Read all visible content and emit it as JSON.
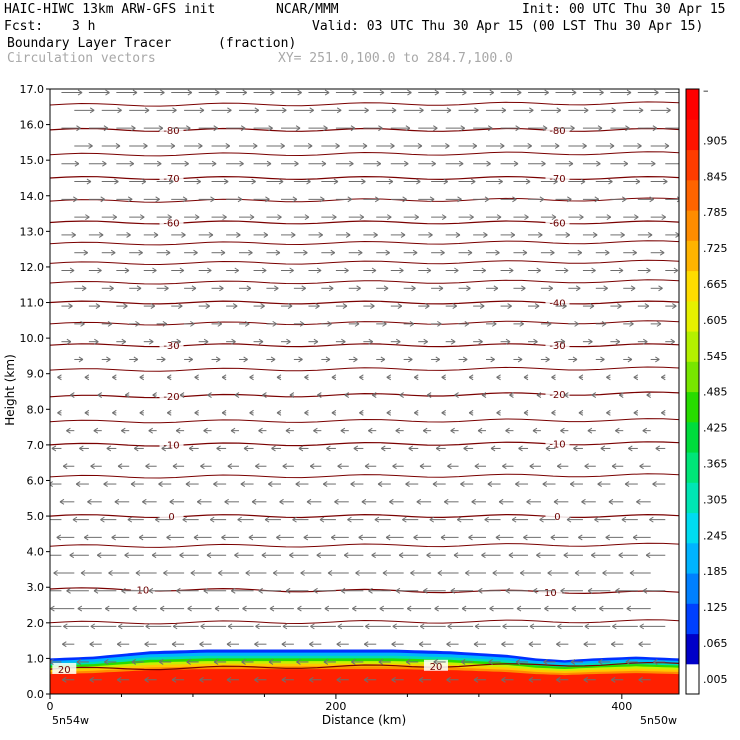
{
  "header": {
    "model": "HAIC-HIWC 13km ARW-GFS init",
    "org": "NCAR/MMM",
    "init": "Init: 00 UTC Thu 30 Apr 15",
    "fcst_label": "Fcst:",
    "fcst_value": "3 h",
    "valid": "Valid: 03 UTC Thu 30 Apr 15 (00 LST Thu 30 Apr 15)",
    "field": "Boundary Layer Tracer",
    "field_units": "(fraction)",
    "overlay": "Circulation vectors",
    "xy": "XY= 251.0,100.0 to 284.7,100.0"
  },
  "colors": {
    "contour": "#7a0000",
    "vector": "#6e6e6e",
    "high": "#ff2000",
    "blue": "#0030ff"
  },
  "chart_data": {
    "type": "heatmap",
    "title": "Boundary Layer Tracer",
    "xlabel": "Distance (km)",
    "ylabel": "Height (km)",
    "xlim": [
      0,
      440
    ],
    "ylim": [
      0,
      17
    ],
    "x_ticks": [
      "0",
      "200",
      "400"
    ],
    "y_ticks": [
      "0.0",
      "1.0",
      "2.0",
      "3.0",
      "4.0",
      "5.0",
      "6.0",
      "7.0",
      "8.0",
      "9.0",
      "10.0",
      "11.0",
      "12.0",
      "13.0",
      "14.0",
      "15.0",
      "16.0",
      "17.0"
    ],
    "x_endpoints": {
      "left": "5n54w",
      "right": "5n50w"
    },
    "colorbar": {
      "labels": [
        ".005",
        ".065",
        ".125",
        ".185",
        ".245",
        ".305",
        ".365",
        ".425",
        ".485",
        ".545",
        ".605",
        ".665",
        ".725",
        ".785",
        ".845",
        ".905"
      ],
      "top_label": "–",
      "colors": [
        "#ffffff",
        "#0000c8",
        "#0040ff",
        "#0080ff",
        "#00b4ff",
        "#00dcf0",
        "#00e6b4",
        "#00e678",
        "#00dc3c",
        "#28dc00",
        "#78e600",
        "#b4f000",
        "#e6f000",
        "#ffdc00",
        "#ffb400",
        "#ff8c00",
        "#ff6400",
        "#ff3c00",
        "#ff1400",
        "#ff0000"
      ]
    },
    "tracer_layer": {
      "description_values": "fraction near 1 below ~0.7 km, decaying to 0 near 1.1-1.3 km",
      "top_km": [
        1.0,
        1.05,
        1.2,
        1.25,
        1.25,
        1.25,
        1.25,
        1.2,
        1.15,
        1.1,
        1.0,
        0.95,
        1.0,
        1.05,
        1.0
      ],
      "x_km": [
        0,
        30,
        70,
        110,
        150,
        200,
        240,
        280,
        300,
        320,
        340,
        360,
        380,
        410,
        440
      ]
    },
    "temperature_contours": [
      {
        "label": "-80",
        "y_left": 15.85,
        "y_right": 15.85,
        "label_x": [
          85,
          355
        ]
      },
      {
        "label": "-70",
        "y_left": 14.5,
        "y_right": 14.5,
        "label_x": [
          85,
          355
        ]
      },
      {
        "label": "-60",
        "y_left": 13.25,
        "y_right": 13.25,
        "label_x": [
          85,
          355
        ]
      },
      {
        "label": "-40",
        "y_left": 11.0,
        "y_right": 11.0,
        "label_x": [
          355
        ]
      },
      {
        "label": "-30",
        "y_left": 9.8,
        "y_right": 9.8,
        "label_x": [
          85,
          355
        ]
      },
      {
        "label": "-20",
        "y_left": 8.35,
        "y_right": 8.45,
        "label_x": [
          85,
          355
        ]
      },
      {
        "label": "-10",
        "y_left": 7.0,
        "y_right": 7.05,
        "label_x": [
          85,
          355
        ]
      },
      {
        "label": "0",
        "y_left": 5.0,
        "y_right": 5.0,
        "label_x": [
          85,
          355
        ]
      },
      {
        "label": "10",
        "y_left": 2.95,
        "y_right": 2.85,
        "label_x": [
          65,
          350
        ]
      },
      {
        "label": "20",
        "y_left": 0.7,
        "y_right": 0.85,
        "label_x": [
          10,
          270
        ]
      }
    ],
    "unlabeled_contour_heights": [
      16.55,
      15.15,
      13.85,
      12.65,
      12.1,
      11.55,
      10.4,
      9.1,
      7.65,
      6.1,
      4.15,
      2.0
    ],
    "wind_vectors": {
      "upper_direction": "eastward above ~9 km",
      "lower_direction": "westward below ~9 km, strongest near 1-3 km"
    }
  }
}
